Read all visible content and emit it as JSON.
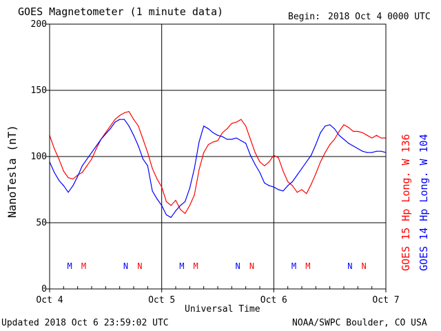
{
  "chart_data": {
    "type": "line",
    "title": "GOES Magnetometer (1 minute data)",
    "begin_label": "Begin:",
    "begin_value": "2018 Oct 4 0000 UTC",
    "xlabel": "Universal Time",
    "ylabel": "NanoTesla (nT)",
    "ylim": [
      0,
      200
    ],
    "xlim": [
      0,
      72
    ],
    "x_unit": "hours since 2018 Oct 4 0000 UTC",
    "y_ticks": [
      0,
      50,
      100,
      150,
      200
    ],
    "x_ticks": [
      {
        "x": 0,
        "label": "Oct 4"
      },
      {
        "x": 24,
        "label": "Oct 5"
      },
      {
        "x": 48,
        "label": "Oct 6"
      },
      {
        "x": 72,
        "label": "Oct 7"
      }
    ],
    "grid": true,
    "series": [
      {
        "name": "GOES 15 Hp  Long. W 136",
        "color": "#ff0000",
        "x": [
          0,
          1,
          2,
          3,
          4,
          5,
          6,
          7,
          8,
          9,
          10,
          11,
          12,
          13,
          14,
          15,
          16,
          17,
          18,
          19,
          20,
          21,
          22,
          23,
          24,
          25,
          26,
          27,
          28,
          29,
          30,
          31,
          32,
          33,
          34,
          35,
          36,
          37,
          38,
          39,
          40,
          41,
          42,
          43,
          44,
          45,
          46,
          47,
          48,
          49,
          50,
          51,
          52,
          53,
          54,
          55,
          56,
          57,
          58,
          59,
          60,
          61,
          62,
          63,
          64,
          65,
          66,
          67,
          68,
          69,
          70,
          71,
          72
        ],
        "values": [
          116,
          106,
          98,
          89,
          84,
          83,
          86,
          88,
          93,
          98,
          106,
          113,
          118,
          123,
          128,
          131,
          133,
          134,
          128,
          123,
          113,
          103,
          91,
          83,
          77,
          66,
          63,
          67,
          60,
          57,
          63,
          71,
          90,
          103,
          109,
          111,
          112,
          118,
          121,
          125,
          126,
          128,
          123,
          113,
          103,
          96,
          93,
          96,
          101,
          99,
          89,
          81,
          78,
          73,
          75,
          72,
          79,
          87,
          96,
          103,
          109,
          113,
          119,
          124,
          122,
          119,
          119,
          118,
          116,
          114,
          116,
          114,
          114
        ]
      },
      {
        "name": "GOES 14 Hp  Long. W 104",
        "color": "#0000ff",
        "x": [
          0,
          1,
          2,
          3,
          4,
          5,
          6,
          7,
          8,
          9,
          10,
          11,
          12,
          13,
          14,
          15,
          16,
          17,
          18,
          19,
          20,
          21,
          22,
          23,
          24,
          25,
          26,
          27,
          28,
          29,
          30,
          31,
          32,
          33,
          34,
          35,
          36,
          37,
          38,
          39,
          40,
          41,
          42,
          43,
          44,
          45,
          46,
          47,
          48,
          49,
          50,
          51,
          52,
          53,
          54,
          55,
          56,
          57,
          58,
          59,
          60,
          61,
          62,
          63,
          64,
          65,
          66,
          67,
          68,
          69,
          70,
          71,
          72
        ],
        "values": [
          96,
          88,
          82,
          78,
          73,
          78,
          85,
          93,
          98,
          103,
          108,
          113,
          117,
          121,
          126,
          128,
          128,
          123,
          116,
          108,
          98,
          93,
          74,
          68,
          63,
          56,
          54,
          59,
          63,
          66,
          76,
          91,
          111,
          123,
          121,
          118,
          116,
          115,
          113,
          113,
          114,
          112,
          110,
          101,
          94,
          88,
          80,
          78,
          77,
          75,
          74,
          78,
          81,
          86,
          91,
          96,
          101,
          109,
          118,
          123,
          124,
          121,
          116,
          113,
          110,
          108,
          106,
          104,
          103,
          103,
          104,
          104,
          103
        ]
      }
    ],
    "annotations": {
      "satellites": [
        {
          "color": "#0000ff",
          "markers": [
            {
              "x": 4.3,
              "label": "M"
            },
            {
              "x": 16.3,
              "label": "N"
            },
            {
              "x": 28.3,
              "label": "M"
            },
            {
              "x": 40.3,
              "label": "N"
            },
            {
              "x": 52.3,
              "label": "M"
            },
            {
              "x": 64.3,
              "label": "N"
            }
          ]
        },
        {
          "color": "#ff0000",
          "markers": [
            {
              "x": 7.3,
              "label": "M"
            },
            {
              "x": 19.3,
              "label": "N"
            },
            {
              "x": 31.3,
              "label": "M"
            },
            {
              "x": 43.3,
              "label": "N"
            },
            {
              "x": 55.3,
              "label": "M"
            },
            {
              "x": 67.3,
              "label": "N"
            }
          ]
        }
      ]
    }
  },
  "footer": {
    "updated": "Updated 2018 Oct  6 23:59:02 UTC",
    "source": "NOAA/SWPC Boulder, CO USA"
  }
}
